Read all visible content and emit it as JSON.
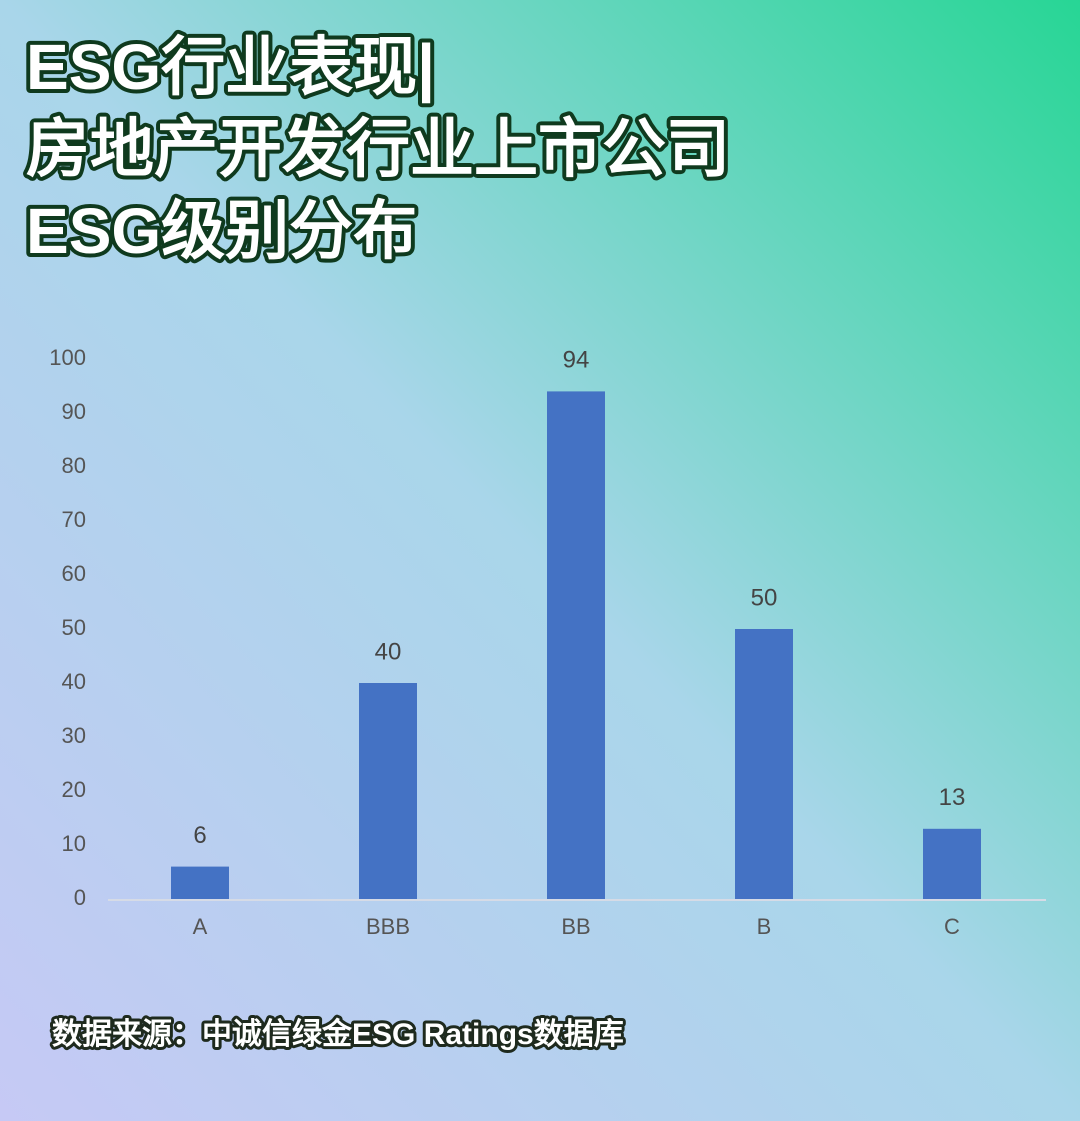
{
  "chart_data": {
    "type": "bar",
    "title": [
      "ESG行业表现|",
      "房地产开发行业上市公司",
      "ESG级别分布"
    ],
    "categories": [
      "A",
      "BBB",
      "BB",
      "B",
      "C"
    ],
    "values": [
      6,
      40,
      94,
      50,
      13
    ],
    "color": "#4472c4",
    "ylim": [
      0,
      100
    ],
    "yticks": [
      0,
      10,
      20,
      30,
      40,
      50,
      60,
      70,
      80,
      90,
      100
    ],
    "grid": false,
    "source": "数据来源：中诚信绿金ESG Ratings数据库"
  }
}
